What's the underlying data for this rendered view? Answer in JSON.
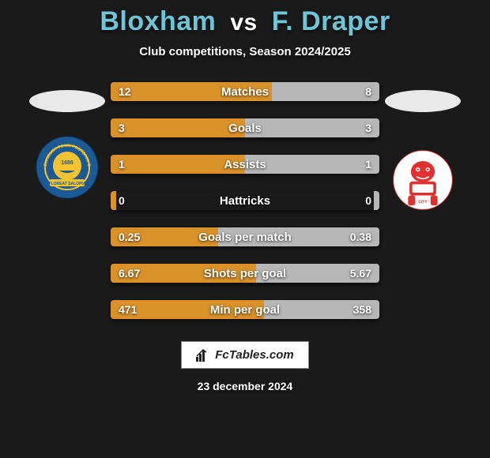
{
  "title": {
    "player1": "Bloxham",
    "vs": "vs",
    "player2": "F. Draper",
    "player1_color": "#6ec5d8",
    "player2_color": "#6ec5d8"
  },
  "subtitle": "Club competitions, Season 2024/2025",
  "left_side": {
    "oval_color": "#e9e9e9",
    "badge_bg": "#1b5a95",
    "badge_ring": "#f4c430",
    "badge_text1": "SHREWSBURY TOWN",
    "badge_text2": "FOOTBALL CLUB",
    "badge_banner": "FLOREAT SALOPIA",
    "badge_year": "1886"
  },
  "right_side": {
    "oval_color": "#e9e9e9",
    "badge_bg": "#ffffff",
    "badge_color": "#e03030"
  },
  "bars": {
    "left_color": "#d9912a",
    "right_color": "#b7b7b7",
    "background_color": "#1a1a1a",
    "rows": [
      {
        "label": "Matches",
        "left_val": "12",
        "right_val": "8",
        "left_pct": 60,
        "right_pct": 40
      },
      {
        "label": "Goals",
        "left_val": "3",
        "right_val": "3",
        "left_pct": 50,
        "right_pct": 50
      },
      {
        "label": "Assists",
        "left_val": "1",
        "right_val": "1",
        "left_pct": 50,
        "right_pct": 50
      },
      {
        "label": "Hattricks",
        "left_val": "0",
        "right_val": "0",
        "left_pct": 2,
        "right_pct": 2
      },
      {
        "label": "Goals per match",
        "left_val": "0.25",
        "right_val": "0.38",
        "left_pct": 40,
        "right_pct": 60
      },
      {
        "label": "Shots per goal",
        "left_val": "6.67",
        "right_val": "5.67",
        "left_pct": 54,
        "right_pct": 46
      },
      {
        "label": "Min per goal",
        "left_val": "471",
        "right_val": "358",
        "left_pct": 57,
        "right_pct": 43
      }
    ]
  },
  "site_badge": "FcTables.com",
  "date": "23 december 2024"
}
